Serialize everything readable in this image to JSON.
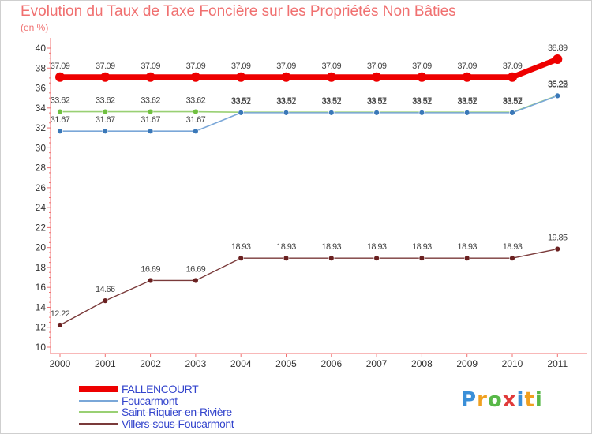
{
  "chart_data": {
    "type": "line",
    "title": "Evolution du Taux de Taxe Foncière sur les Propriétés Non Bâties",
    "unit": "(en %)",
    "x": [
      "2000",
      "2001",
      "2002",
      "2003",
      "2004",
      "2005",
      "2006",
      "2007",
      "2008",
      "2009",
      "2010",
      "2011"
    ],
    "ylim": [
      10,
      40
    ],
    "yticks": [
      10,
      12,
      14,
      16,
      18,
      20,
      22,
      24,
      26,
      28,
      30,
      32,
      34,
      36,
      38,
      40
    ],
    "grid": false,
    "legend_position": "bottom-left",
    "series": [
      {
        "name": "FALLENCOURT",
        "color": "#ee0000",
        "values": [
          37.09,
          37.09,
          37.09,
          37.09,
          37.09,
          37.09,
          37.09,
          37.09,
          37.09,
          37.09,
          37.09,
          38.89
        ],
        "labels": [
          "37.09",
          "37.09",
          "37.09",
          "37.09",
          "37.09",
          "37.09",
          "37.09",
          "37.09",
          "37.09",
          "37.09",
          "37.09",
          "38.89"
        ]
      },
      {
        "name": "Foucarmont",
        "color": "#7aa7d8",
        "values": [
          31.67,
          31.67,
          31.67,
          31.67,
          33.52,
          33.52,
          33.52,
          33.52,
          33.52,
          33.52,
          33.52,
          35.22
        ],
        "labels": [
          "31.67",
          "31.67",
          "31.67",
          "31.67",
          "33.52",
          "33.52",
          "33.52",
          "33.52",
          "33.52",
          "33.52",
          "33.52",
          "35.22"
        ]
      },
      {
        "name": "Saint-Riquier-en-Rivière",
        "color": "#99d073",
        "values": [
          33.62,
          33.62,
          33.62,
          33.62,
          33.57,
          33.57,
          33.57,
          33.57,
          33.57,
          33.57,
          33.57,
          35.25
        ],
        "labels": [
          "33.62",
          "33.62",
          "33.62",
          "33.62",
          "33.57",
          "33.57",
          "33.57",
          "33.57",
          "33.57",
          "33.57",
          "33.57",
          "35.25"
        ]
      },
      {
        "name": "Villers-sous-Foucarmont",
        "color": "#7a3a3a",
        "values": [
          12.22,
          14.66,
          16.69,
          16.69,
          18.93,
          18.93,
          18.93,
          18.93,
          18.93,
          18.93,
          18.93,
          19.85
        ],
        "labels": [
          "12.22",
          "14.66",
          "16.69",
          "16.69",
          "18.93",
          "18.93",
          "18.93",
          "18.93",
          "18.93",
          "18.93",
          "18.93",
          "19.85"
        ]
      }
    ]
  },
  "logo": {
    "text": "Proxiti"
  }
}
